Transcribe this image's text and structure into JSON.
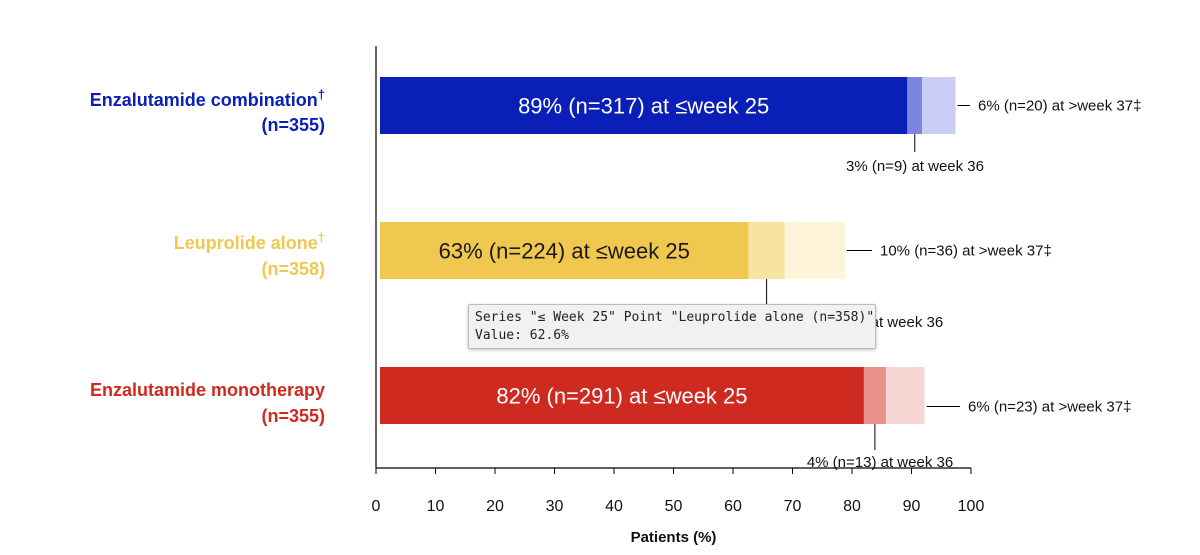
{
  "chart_data": {
    "type": "bar",
    "stacked": true,
    "orientation": "horizontal",
    "xlabel": "Patients (%)",
    "xlim": [
      0,
      100
    ],
    "xticks": [
      0,
      10,
      20,
      30,
      40,
      50,
      60,
      70,
      80,
      90,
      100
    ],
    "categories": [
      {
        "name": "Enzalutamide combination",
        "sup": "†",
        "n": "(n=355)",
        "color": "#0a1fb8"
      },
      {
        "name": "Leuprolide alone",
        "sup": "†",
        "n": "(n=358)",
        "color": "#f0c850"
      },
      {
        "name": "Enzalutamide monotherapy",
        "sup": "",
        "n": "(n=355)",
        "color": "#cf2a1f"
      }
    ],
    "series": [
      {
        "name": "≤ Week 25",
        "values": [
          89.3,
          62.6,
          82.0
        ],
        "labels": [
          "89% (n=317) at ≤week 25",
          "63% (n=224) at ≤week 25",
          "82% (n=291) at ≤week 25"
        ],
        "colors": [
          "#0a1fb8",
          "#f0c850",
          "#cf2a1f"
        ],
        "label_colors": [
          "#ffffff",
          "#1a1a1a",
          "#ffffff"
        ]
      },
      {
        "values": [
          2.5,
          6.1,
          3.7
        ],
        "labels": [
          "3% (n=9) at week 36",
          "6% (n=22) at week 36",
          "4% (n=13) at week 36"
        ],
        "colors": [
          "#7d86de",
          "#f7e3a2",
          "#e8918a"
        ]
      },
      {
        "values": [
          5.6,
          10.1,
          6.5
        ],
        "labels": [
          "6% (n=20) at >week 37‡",
          "10% (n=36) at >week 37‡",
          "6% (n=23) at >week 37‡"
        ],
        "colors": [
          "#c9cdf3",
          "#fdf4da",
          "#f5d6d3"
        ]
      }
    ]
  },
  "tooltip": {
    "line1": "Series \"≤ Week 25\" Point \"Leuprolide alone (n=358)\"",
    "line2": "Value: 62.6%"
  }
}
